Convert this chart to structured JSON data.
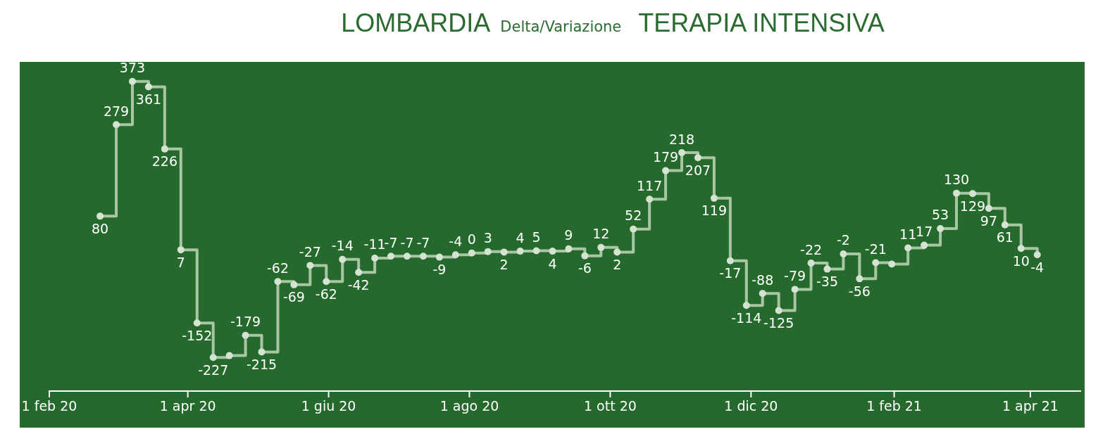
{
  "chart_data": {
    "type": "step",
    "title": "LOMBARDIA",
    "subtitle": "Delta/Variazione",
    "annotations": [
      "TERAPIA INTENSIVA"
    ],
    "x": [
      "2020-02-23",
      "2020-03-01",
      "2020-03-08",
      "2020-03-15",
      "2020-03-22",
      "2020-03-29",
      "2020-04-05",
      "2020-04-12",
      "2020-04-19",
      "2020-04-26",
      "2020-05-03",
      "2020-05-10",
      "2020-05-17",
      "2020-05-24",
      "2020-05-31",
      "2020-06-07",
      "2020-06-14",
      "2020-06-21",
      "2020-06-28",
      "2020-07-05",
      "2020-07-12",
      "2020-07-19",
      "2020-07-26",
      "2020-08-02",
      "2020-08-09",
      "2020-08-16",
      "2020-08-23",
      "2020-08-30",
      "2020-09-06",
      "2020-09-13",
      "2020-09-20",
      "2020-09-27",
      "2020-10-04",
      "2020-10-11",
      "2020-10-18",
      "2020-10-25",
      "2020-11-01",
      "2020-11-08",
      "2020-11-15",
      "2020-11-22",
      "2020-11-29",
      "2020-12-06",
      "2020-12-13",
      "2020-12-20",
      "2020-12-27",
      "2021-01-03",
      "2021-01-10",
      "2021-01-17",
      "2021-01-24",
      "2021-01-31",
      "2021-02-07",
      "2021-02-14",
      "2021-02-21",
      "2021-02-28",
      "2021-03-07",
      "2021-03-14",
      "2021-03-21",
      "2021-03-28",
      "2021-04-04"
    ],
    "series": [
      {
        "color": "#a9c6a4",
        "values": [
          80,
          279,
          373,
          361,
          226,
          7,
          -152,
          -227,
          -223,
          -179,
          -215,
          -62,
          -69,
          -27,
          -62,
          -14,
          -42,
          -11,
          -7,
          -7,
          -7,
          -9,
          -4,
          0,
          3,
          2,
          4,
          5,
          4,
          9,
          -6,
          12,
          2,
          52,
          117,
          179,
          218,
          207,
          119,
          -17,
          -114,
          -88,
          -125,
          -79,
          -22,
          -35,
          -2,
          -56,
          -21,
          -24,
          11,
          17,
          53,
          130,
          129,
          97,
          61,
          10,
          -4
        ],
        "value_labels": [
          "80",
          "279",
          "373",
          "361",
          "226",
          "7",
          "-152",
          "-227",
          null,
          "-179",
          "-215",
          "-62",
          "-69",
          "-27",
          "-62",
          "-14",
          "-42",
          "-11",
          "-7",
          "-7",
          "-7",
          "-9",
          "-4",
          "0",
          "3",
          "2",
          "4",
          "5",
          "4",
          "9",
          "-6",
          "12",
          "2",
          "52",
          "117",
          "179",
          "218",
          "207",
          "119",
          "-17",
          "-114",
          "-88",
          "-125",
          "-79",
          "-22",
          "-35",
          "-2",
          "-56",
          "-21",
          null,
          "11",
          "17",
          "53",
          "130",
          "129",
          "97",
          "61",
          "10",
          "-4"
        ]
      }
    ],
    "xlim": [
      "2020-02-01",
      "2021-04-23"
    ],
    "xticks": [
      {
        "value": "2020-02-01",
        "label": "1 feb 20"
      },
      {
        "value": "2020-04-01",
        "label": "1 apr 20"
      },
      {
        "value": "2020-06-01",
        "label": "1 giu 20"
      },
      {
        "value": "2020-08-01",
        "label": "1 ago 20"
      },
      {
        "value": "2020-10-01",
        "label": "1 ott 20"
      },
      {
        "value": "2020-12-01",
        "label": "1 dic 20"
      },
      {
        "value": "2021-02-01",
        "label": "1 feb 21"
      },
      {
        "value": "2021-04-01",
        "label": "1 apr 21"
      }
    ],
    "tick_labels": "x",
    "legend": false,
    "marker": "circle",
    "line_style": "solid"
  }
}
